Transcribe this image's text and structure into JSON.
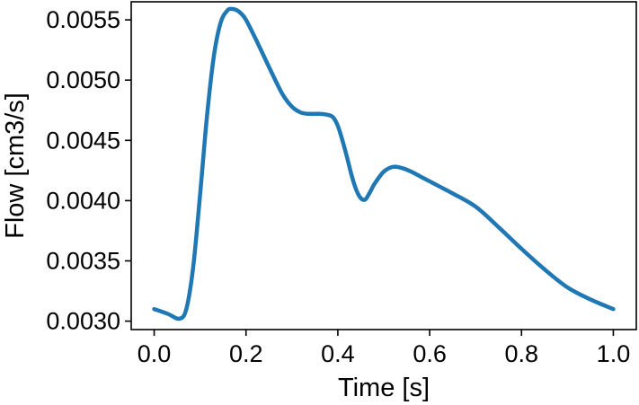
{
  "chart_data": {
    "type": "line",
    "title": "",
    "xlabel": "Time [s]",
    "ylabel": "Flow [cm3/s]",
    "xlim": [
      -0.05,
      1.05
    ],
    "ylim": [
      0.00293,
      0.00565
    ],
    "x_ticks": [
      0.0,
      0.2,
      0.4,
      0.6,
      0.8,
      1.0
    ],
    "x_tick_labels": [
      "0.0",
      "0.2",
      "0.4",
      "0.6",
      "0.8",
      "1.0"
    ],
    "y_ticks": [
      0.003,
      0.0035,
      0.004,
      0.0045,
      0.005,
      0.0055
    ],
    "y_tick_labels": [
      "0.0030",
      "0.0035",
      "0.0040",
      "0.0045",
      "0.0050",
      "0.0055"
    ],
    "grid": false,
    "legend": "none",
    "series": [
      {
        "color": "#1f77b4",
        "x": [
          0.0,
          0.03,
          0.055,
          0.07,
          0.085,
          0.1,
          0.115,
          0.13,
          0.145,
          0.16,
          0.17,
          0.18,
          0.19,
          0.2,
          0.22,
          0.24,
          0.26,
          0.28,
          0.3,
          0.32,
          0.34,
          0.36,
          0.38,
          0.39,
          0.4,
          0.41,
          0.42,
          0.43,
          0.44,
          0.45,
          0.46,
          0.47,
          0.48,
          0.5,
          0.52,
          0.54,
          0.56,
          0.58,
          0.6,
          0.62,
          0.65,
          0.7,
          0.75,
          0.8,
          0.85,
          0.9,
          0.95,
          1.0
        ],
        "y": [
          0.0031,
          0.00306,
          0.00302,
          0.0031,
          0.00345,
          0.00405,
          0.0047,
          0.0052,
          0.00548,
          0.00558,
          0.00559,
          0.00558,
          0.00555,
          0.0055,
          0.00535,
          0.00519,
          0.00503,
          0.00488,
          0.00478,
          0.00473,
          0.00472,
          0.00472,
          0.00471,
          0.00469,
          0.00462,
          0.0045,
          0.00436,
          0.00421,
          0.00409,
          0.00402,
          0.00401,
          0.00407,
          0.00414,
          0.00424,
          0.00428,
          0.00427,
          0.00424,
          0.0042,
          0.00416,
          0.00412,
          0.00406,
          0.00395,
          0.00378,
          0.0036,
          0.00343,
          0.00328,
          0.00318,
          0.0031
        ]
      }
    ]
  }
}
